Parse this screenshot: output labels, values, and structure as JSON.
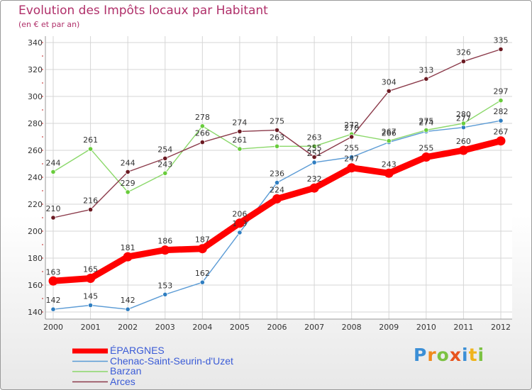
{
  "chart_data": {
    "type": "line",
    "title": "Evolution des Impôts locaux par Habitant",
    "subtitle": "(en € et par an)",
    "x": [
      "2000",
      "2001",
      "2002",
      "2003",
      "2004",
      "2005",
      "2006",
      "2007",
      "2008",
      "2009",
      "2010",
      "2011",
      "2012"
    ],
    "yticks": [
      140,
      160,
      180,
      200,
      220,
      240,
      260,
      280,
      300,
      320,
      340
    ],
    "ylim": [
      140,
      340
    ],
    "grid": true,
    "series": [
      {
        "name": "Chenac-Saint-Seurin-d'Uzet",
        "color": "#5b9bd5",
        "marker_color": "#2f7ec1",
        "values": [
          142,
          145,
          142,
          153,
          162,
          199,
          236,
          251,
          255,
          266,
          274,
          277,
          282
        ]
      },
      {
        "name": "Barzan",
        "color": "#8bd86a",
        "marker_color": "#69cc3c",
        "values": [
          244,
          261,
          229,
          243,
          278,
          261,
          263,
          263,
          272,
          267,
          275,
          280,
          297
        ]
      },
      {
        "name": "Arces",
        "color": "#8b3a4a",
        "marker_color": "#6b1a22",
        "values": [
          210,
          216,
          244,
          254,
          266,
          274,
          275,
          255,
          270,
          304,
          313,
          326,
          335
        ]
      },
      {
        "name": "ÉPARGNES",
        "color": "#ff0000",
        "marker_color": "#ff0000",
        "values": [
          163,
          165,
          181,
          186,
          187,
          206,
          224,
          232,
          247,
          243,
          255,
          260,
          267
        ]
      }
    ],
    "legend_order": [
      "ÉPARGNES",
      "Chenac-Saint-Seurin-d'Uzet",
      "Barzan",
      "Arces"
    ],
    "legend_position": "bottom-left"
  },
  "brand": {
    "letters": [
      "P",
      "r",
      "o",
      "x",
      "i",
      "t",
      "i"
    ],
    "colors": [
      "#3b8fd6",
      "#f08a1c",
      "#7cc242",
      "#e8541e",
      "#3b8fd6",
      "#f0b41c",
      "#7cc242"
    ]
  }
}
